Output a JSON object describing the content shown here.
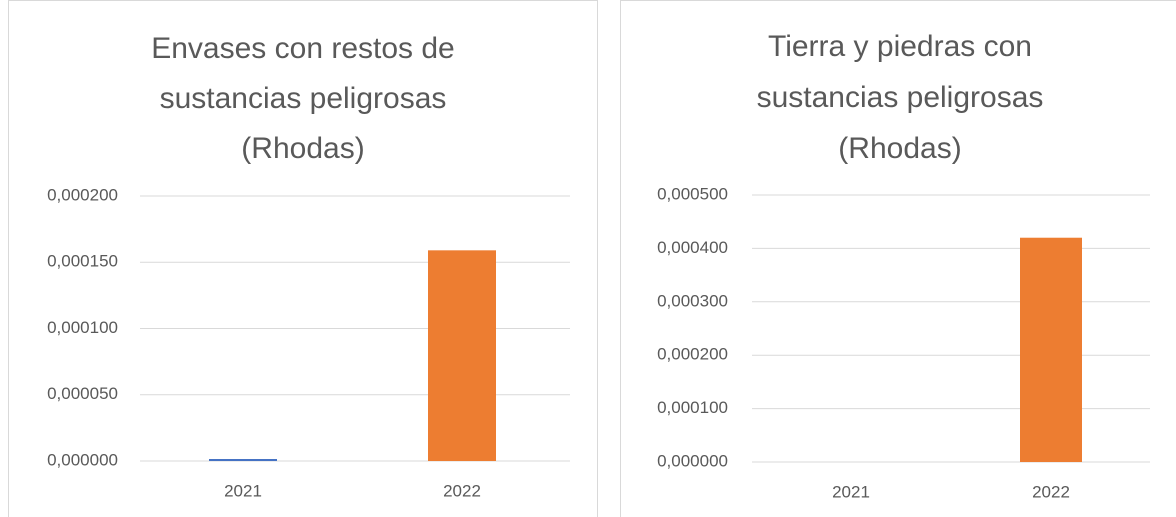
{
  "chart_data": [
    {
      "type": "bar",
      "title": [
        "Envases con restos de",
        "sustancias peligrosas",
        "(Rhodas)"
      ],
      "categories": [
        "2021",
        "2022"
      ],
      "values": [
        1.5e-06,
        0.000159
      ],
      "colors": [
        "#4472c4",
        "#ed7d31"
      ],
      "ylim": [
        0,
        0.0002
      ],
      "yticks": [
        {
          "value": 0,
          "label": "0,000000"
        },
        {
          "value": 5e-05,
          "label": "0,000050"
        },
        {
          "value": 0.0001,
          "label": "0,000100"
        },
        {
          "value": 0.00015,
          "label": "0,000150"
        },
        {
          "value": 0.0002,
          "label": "0,000200"
        }
      ],
      "grid": true
    },
    {
      "type": "bar",
      "title": [
        "Tierra y piedras con",
        "sustancias peligrosas",
        "(Rhodas)"
      ],
      "categories": [
        "2021",
        "2022"
      ],
      "values": [
        0,
        0.00042
      ],
      "colors": [
        "#4472c4",
        "#ed7d31"
      ],
      "ylim": [
        0,
        0.0005
      ],
      "yticks": [
        {
          "value": 0,
          "label": "0,000000"
        },
        {
          "value": 0.0001,
          "label": "0,000100"
        },
        {
          "value": 0.0002,
          "label": "0,000200"
        },
        {
          "value": 0.0003,
          "label": "0,000300"
        },
        {
          "value": 0.0004,
          "label": "0,000400"
        },
        {
          "value": 0.0005,
          "label": "0,000500"
        }
      ],
      "grid": true
    }
  ]
}
